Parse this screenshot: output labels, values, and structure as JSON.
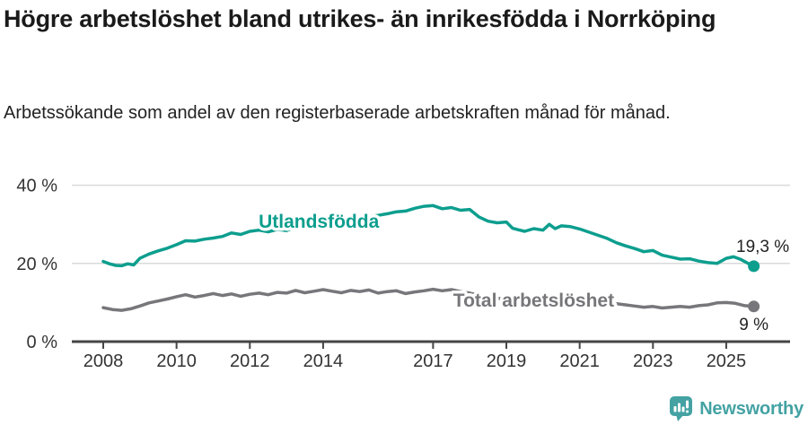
{
  "header": {
    "title": "Högre arbetslöshet bland utrikes- än inrikesfödda i Norrköping",
    "subtitle": "Arbetssökande som andel av den registerbaserade arbetskraften månad för månad."
  },
  "footer": {
    "brand": "Newsworthy",
    "logo_icon": "bar-chart-speech-bubble-icon"
  },
  "colors": {
    "foreign_born_line": "#0d9e8e",
    "total_line": "#77777b",
    "grid": "#dadada",
    "axis": "#454545",
    "axis_text": "#333333",
    "value_text": "#222222",
    "title_text": "#1a1a1a",
    "brand_teal": "#44a2a3",
    "background": "#ffffff"
  },
  "chart_data": {
    "type": "line",
    "unit": "%",
    "grid": "horizontal-only",
    "legend_position": "inline-labels",
    "x_axis": {
      "ticks": [
        2008,
        2010,
        2012,
        2014,
        2017,
        2019,
        2021,
        2023,
        2025
      ],
      "tick_labels": [
        "2008",
        "2010",
        "2012",
        "2014",
        "2017",
        "2019",
        "2021",
        "2023",
        "2025"
      ],
      "range": [
        2007.2,
        2026.7
      ]
    },
    "y_axis": {
      "ticks": [
        0,
        20,
        40
      ],
      "tick_labels": [
        "0 %",
        "20 %",
        "40 %"
      ],
      "range": [
        0,
        46
      ]
    },
    "series": [
      {
        "name": "Utlandsfödda",
        "color": "#0d9e8e",
        "end_label": "19,3 %",
        "end_value": 19.3,
        "label_at": [
          2012.24,
          29.1
        ],
        "end_label_offset": [
          10,
          -16
        ],
        "end_label_anchor": "middle",
        "points": [
          [
            2008.0,
            20.5
          ],
          [
            2008.17,
            19.9
          ],
          [
            2008.33,
            19.5
          ],
          [
            2008.5,
            19.4
          ],
          [
            2008.67,
            19.9
          ],
          [
            2008.83,
            19.6
          ],
          [
            2009.0,
            21.3
          ],
          [
            2009.25,
            22.4
          ],
          [
            2009.5,
            23.2
          ],
          [
            2009.75,
            23.9
          ],
          [
            2010.0,
            24.8
          ],
          [
            2010.25,
            25.8
          ],
          [
            2010.5,
            25.7
          ],
          [
            2010.75,
            26.2
          ],
          [
            2011.0,
            26.5
          ],
          [
            2011.25,
            26.9
          ],
          [
            2011.5,
            27.8
          ],
          [
            2011.75,
            27.4
          ],
          [
            2012.0,
            28.2
          ],
          [
            2012.25,
            28.5
          ],
          [
            2012.5,
            28.1
          ],
          [
            2012.75,
            28.7
          ],
          [
            2013.0,
            28.4
          ],
          [
            2013.25,
            29.3
          ],
          [
            2013.5,
            28.9
          ],
          [
            2013.75,
            29.1
          ],
          [
            2014.0,
            29.5
          ],
          [
            2014.25,
            30.1
          ],
          [
            2014.5,
            30.8
          ],
          [
            2014.75,
            31.3
          ],
          [
            2015.0,
            31.7
          ],
          [
            2015.25,
            32.0
          ],
          [
            2015.5,
            32.3
          ],
          [
            2015.75,
            32.7
          ],
          [
            2016.0,
            33.2
          ],
          [
            2016.25,
            33.4
          ],
          [
            2016.5,
            34.1
          ],
          [
            2016.75,
            34.6
          ],
          [
            2017.0,
            34.8
          ],
          [
            2017.25,
            34.0
          ],
          [
            2017.5,
            34.3
          ],
          [
            2017.75,
            33.6
          ],
          [
            2018.0,
            33.8
          ],
          [
            2018.25,
            31.9
          ],
          [
            2018.5,
            30.8
          ],
          [
            2018.75,
            30.4
          ],
          [
            2019.0,
            30.6
          ],
          [
            2019.17,
            29.0
          ],
          [
            2019.33,
            28.6
          ],
          [
            2019.5,
            28.2
          ],
          [
            2019.75,
            28.9
          ],
          [
            2020.0,
            28.5
          ],
          [
            2020.17,
            30.0
          ],
          [
            2020.33,
            28.9
          ],
          [
            2020.5,
            29.6
          ],
          [
            2020.75,
            29.4
          ],
          [
            2021.0,
            28.8
          ],
          [
            2021.25,
            28.0
          ],
          [
            2021.5,
            27.2
          ],
          [
            2021.75,
            26.4
          ],
          [
            2022.0,
            25.3
          ],
          [
            2022.25,
            24.5
          ],
          [
            2022.5,
            23.8
          ],
          [
            2022.75,
            23.0
          ],
          [
            2023.0,
            23.3
          ],
          [
            2023.25,
            22.1
          ],
          [
            2023.5,
            21.6
          ],
          [
            2023.75,
            21.1
          ],
          [
            2024.0,
            21.2
          ],
          [
            2024.25,
            20.6
          ],
          [
            2024.5,
            20.2
          ],
          [
            2024.75,
            20.0
          ],
          [
            2025.0,
            21.3
          ],
          [
            2025.2,
            21.7
          ],
          [
            2025.4,
            21.0
          ],
          [
            2025.6,
            20.0
          ],
          [
            2025.75,
            19.3
          ]
        ]
      },
      {
        "name": "Total arbetslöshet",
        "color": "#77777b",
        "end_label": "9 %",
        "end_value": 9.0,
        "label_at": [
          2017.55,
          8.9
        ],
        "end_label_offset": [
          0,
          26
        ],
        "end_label_anchor": "middle",
        "points": [
          [
            2008.0,
            8.7
          ],
          [
            2008.25,
            8.2
          ],
          [
            2008.5,
            8.0
          ],
          [
            2008.75,
            8.4
          ],
          [
            2009.0,
            9.1
          ],
          [
            2009.25,
            9.9
          ],
          [
            2009.5,
            10.4
          ],
          [
            2009.75,
            10.9
          ],
          [
            2010.0,
            11.5
          ],
          [
            2010.25,
            12.0
          ],
          [
            2010.5,
            11.4
          ],
          [
            2010.75,
            11.8
          ],
          [
            2011.0,
            12.3
          ],
          [
            2011.25,
            11.8
          ],
          [
            2011.5,
            12.2
          ],
          [
            2011.75,
            11.6
          ],
          [
            2012.0,
            12.1
          ],
          [
            2012.25,
            12.4
          ],
          [
            2012.5,
            12.0
          ],
          [
            2012.75,
            12.6
          ],
          [
            2013.0,
            12.4
          ],
          [
            2013.25,
            13.1
          ],
          [
            2013.5,
            12.5
          ],
          [
            2013.75,
            12.9
          ],
          [
            2014.0,
            13.3
          ],
          [
            2014.25,
            12.9
          ],
          [
            2014.5,
            12.5
          ],
          [
            2014.75,
            13.1
          ],
          [
            2015.0,
            12.8
          ],
          [
            2015.25,
            13.2
          ],
          [
            2015.5,
            12.4
          ],
          [
            2015.75,
            12.8
          ],
          [
            2016.0,
            13.0
          ],
          [
            2016.25,
            12.3
          ],
          [
            2016.5,
            12.7
          ],
          [
            2016.75,
            13.0
          ],
          [
            2017.0,
            13.4
          ],
          [
            2017.25,
            13.0
          ],
          [
            2017.5,
            13.3
          ],
          [
            2017.75,
            12.8
          ],
          [
            2018.0,
            12.4
          ],
          [
            2018.25,
            11.9
          ],
          [
            2018.5,
            11.4
          ],
          [
            2018.75,
            11.1
          ],
          [
            2019.0,
            10.9
          ],
          [
            2019.25,
            10.6
          ],
          [
            2019.5,
            10.4
          ],
          [
            2019.75,
            10.7
          ],
          [
            2020.0,
            11.0
          ],
          [
            2020.25,
            11.7
          ],
          [
            2020.5,
            11.4
          ],
          [
            2020.75,
            11.1
          ],
          [
            2021.0,
            10.8
          ],
          [
            2021.25,
            10.4
          ],
          [
            2021.5,
            10.1
          ],
          [
            2021.75,
            9.9
          ],
          [
            2022.0,
            9.7
          ],
          [
            2022.25,
            9.4
          ],
          [
            2022.5,
            9.1
          ],
          [
            2022.75,
            8.8
          ],
          [
            2023.0,
            9.0
          ],
          [
            2023.25,
            8.6
          ],
          [
            2023.5,
            8.8
          ],
          [
            2023.75,
            9.0
          ],
          [
            2024.0,
            8.8
          ],
          [
            2024.25,
            9.2
          ],
          [
            2024.5,
            9.4
          ],
          [
            2024.75,
            9.9
          ],
          [
            2025.0,
            10.0
          ],
          [
            2025.25,
            9.8
          ],
          [
            2025.5,
            9.2
          ],
          [
            2025.75,
            9.0
          ]
        ]
      }
    ]
  }
}
